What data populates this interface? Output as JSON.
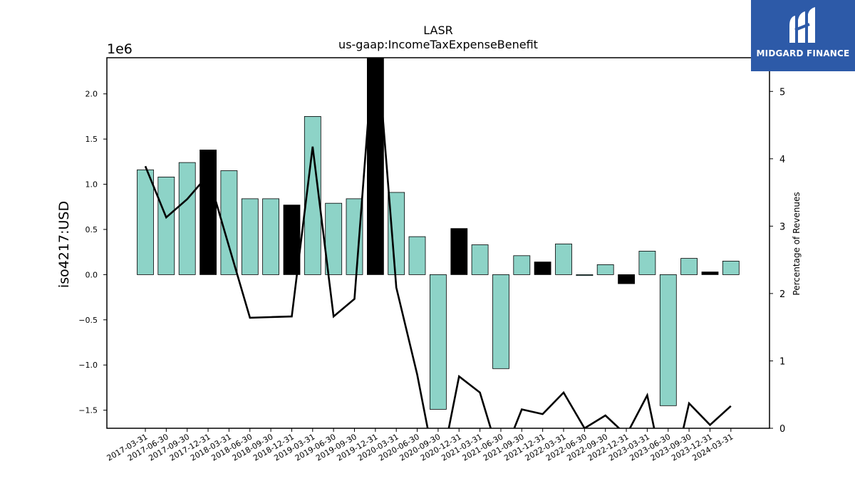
{
  "chart_data": {
    "type": "bar",
    "title": "LASR",
    "subtitle": "us-gaap:IncomeTaxExpenseBenefit",
    "ylabel": "iso4217:USD",
    "ylabel_right": "Percentage of Revenues",
    "y_scale_label": "1e6",
    "ylim": [
      -1.7,
      2.4
    ],
    "ylim_right": [
      0,
      5.5
    ],
    "yticks": [
      "−1.5",
      "−1.0",
      "−0.5",
      "0.0",
      "0.5",
      "1.0",
      "1.5",
      "2.0"
    ],
    "yticks_values": [
      -1.5,
      -1.0,
      -0.5,
      0.0,
      0.5,
      1.0,
      1.5,
      2.0
    ],
    "yticks_right": [
      "0",
      "1",
      "2",
      "3",
      "4",
      "5"
    ],
    "yticks_right_values": [
      0,
      1,
      2,
      3,
      4,
      5
    ],
    "categories": [
      "2017-03-31",
      "2017-06-30",
      "2017-09-30",
      "2017-12-31",
      "2018-03-31",
      "2018-06-30",
      "2018-09-30",
      "2018-12-31",
      "2019-03-31",
      "2019-06-30",
      "2019-09-30",
      "2019-12-31",
      "2020-03-31",
      "2020-06-30",
      "2020-09-30",
      "2020-12-31",
      "2021-03-31",
      "2021-06-30",
      "2021-09-30",
      "2021-12-31",
      "2022-03-31",
      "2022-06-30",
      "2022-09-30",
      "2022-12-31",
      "2023-03-31",
      "2023-06-30",
      "2023-09-30",
      "2023-12-31",
      "2024-03-31"
    ],
    "series": [
      {
        "type": "bar",
        "values": [
          1.16,
          1.08,
          1.24,
          1.38,
          1.15,
          0.84,
          0.84,
          0.77,
          1.75,
          0.79,
          0.84,
          2.4,
          0.91,
          0.42,
          -1.49,
          0.51,
          0.33,
          -1.04,
          0.21,
          0.14,
          0.34,
          -0.01,
          0.11,
          -0.1,
          0.26,
          -1.45,
          0.18,
          0.03,
          0.15
        ],
        "highlight": [
          false,
          false,
          false,
          true,
          false,
          false,
          false,
          true,
          false,
          false,
          false,
          true,
          false,
          false,
          false,
          true,
          false,
          false,
          false,
          true,
          false,
          false,
          false,
          true,
          false,
          false,
          false,
          true,
          false
        ],
        "color": "#8dd3c7",
        "highlight_color": "#000000"
      },
      {
        "type": "line",
        "axis": "right",
        "values": [
          3.89,
          3.13,
          3.4,
          3.76,
          2.7,
          1.64,
          1.65,
          1.66,
          4.18,
          1.66,
          1.92,
          6.0,
          2.09,
          0.8,
          -0.8,
          0.77,
          0.53,
          -0.5,
          0.28,
          0.21,
          0.53,
          0.0,
          0.19,
          -0.1,
          0.49,
          -1.0,
          0.37,
          0.05,
          0.33
        ],
        "color": "#000000"
      }
    ]
  },
  "logo": {
    "text": "MIDGARD FINANCE"
  }
}
